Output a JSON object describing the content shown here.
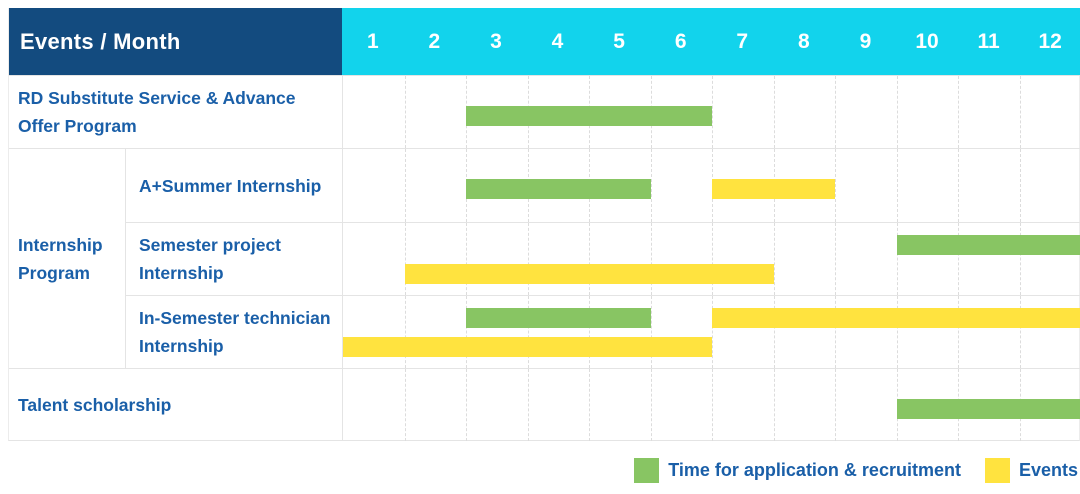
{
  "chart_data": {
    "type": "bar",
    "subtype": "gantt",
    "corner_label": "Events / Month",
    "months": [
      "1",
      "2",
      "3",
      "4",
      "5",
      "6",
      "7",
      "8",
      "9",
      "10",
      "11",
      "12"
    ],
    "x_range": [
      1,
      12
    ],
    "group_label": "Internship Program",
    "rows": [
      {
        "label": "RD Substitute Service & Advance Offer Program",
        "group": null,
        "lines": 1,
        "bars": [
          {
            "kind": "application",
            "start_month": 3,
            "end_month": 6,
            "line": 0
          }
        ]
      },
      {
        "label": "A+Summer Internship",
        "group": "Internship Program",
        "lines": 1,
        "bars": [
          {
            "kind": "application",
            "start_month": 3,
            "end_month": 5,
            "line": 0
          },
          {
            "kind": "event",
            "start_month": 7,
            "end_month": 8,
            "line": 0
          }
        ]
      },
      {
        "label": "Semester project Internship",
        "group": "Internship Program",
        "lines": 2,
        "bars": [
          {
            "kind": "application",
            "start_month": 10,
            "end_month": 12,
            "line": 0
          },
          {
            "kind": "event",
            "start_month": 2,
            "end_month": 7,
            "line": 1
          }
        ]
      },
      {
        "label": "In-Semester technician Internship",
        "group": "Internship Program",
        "lines": 2,
        "bars": [
          {
            "kind": "application",
            "start_month": 3,
            "end_month": 5,
            "line": 0
          },
          {
            "kind": "event",
            "start_month": 7,
            "end_month": 12,
            "line": 0
          },
          {
            "kind": "event",
            "start_month": 1,
            "end_month": 6,
            "line": 1
          }
        ]
      },
      {
        "label": "Talent scholarship",
        "group": null,
        "lines": 1,
        "bars": [
          {
            "kind": "application",
            "start_month": 10,
            "end_month": 12,
            "line": 0
          }
        ]
      }
    ],
    "legend": [
      {
        "kind": "application",
        "label": "Time for application & recruitment",
        "color": "#88c563"
      },
      {
        "kind": "event",
        "label": "Events",
        "color": "#ffe33f"
      }
    ]
  },
  "colors": {
    "header_bg": "#134b7f",
    "month_header_bg": "#12d3ec",
    "header_text": "#ffffff",
    "label_text": "#1a5fa8",
    "grid_line": "#e4e4e4",
    "application_bar": "#88c563",
    "event_bar": "#ffe33f"
  }
}
